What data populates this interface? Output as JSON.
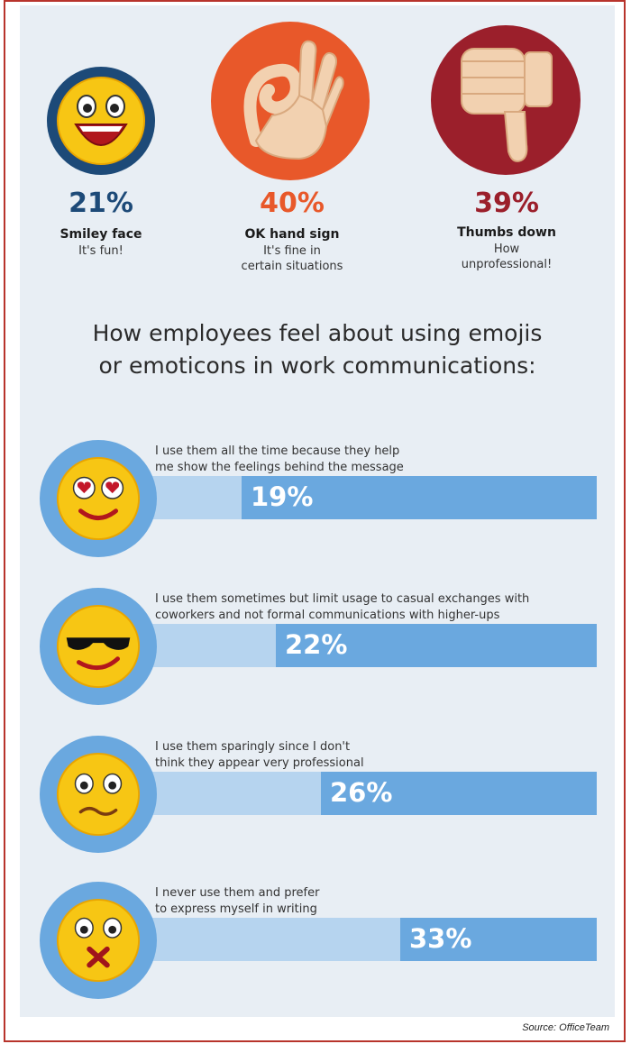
{
  "top_icons": [
    {
      "percent": "21%",
      "title": "Smiley face",
      "subtitle": [
        "It's fun!"
      ],
      "color": "#1d4a78",
      "ring": "#1d4a78",
      "icon": "smiley-face-icon"
    },
    {
      "percent": "40%",
      "title": "OK hand sign",
      "subtitle": [
        "It's fine in",
        "certain situations"
      ],
      "color": "#e8582a",
      "ring": "#e8582a",
      "icon": "ok-hand-icon"
    },
    {
      "percent": "39%",
      "title": "Thumbs down",
      "subtitle": [
        "How",
        "unprofessional!"
      ],
      "color": "#9b1f2b",
      "ring": "#9b1f2b",
      "icon": "thumbs-down-icon"
    }
  ],
  "heading_lines": [
    "How employees feel about using emojis",
    "or emoticons in work communications:"
  ],
  "chart_data": {
    "type": "bar",
    "categories": [
      "I use them all the time because they help me show the feelings behind the message",
      "I use them sometimes but limit usage to casual exchanges with coworkers and not formal communications with higher-ups",
      "I use them sparingly since I don't think they appear very professional",
      "I never use them and prefer to express myself in writing"
    ],
    "category_lines": [
      [
        "I use them all the time because they help",
        "me show the feelings behind the message"
      ],
      [
        "I use them sometimes but limit usage to casual exchanges with",
        "coworkers and not formal communications with higher-ups"
      ],
      [
        "I use them sparingly since I don't",
        "think they appear very professional"
      ],
      [
        "I never use them and prefer",
        "to express myself in writing"
      ]
    ],
    "values": [
      19,
      22,
      26,
      33
    ],
    "value_labels": [
      "19%",
      "22%",
      "26%",
      "33%"
    ],
    "icons": [
      "heart-eyes-face-icon",
      "sunglasses-face-icon",
      "worried-face-icon",
      "muted-face-icon"
    ],
    "colors": {
      "track": "#6aa8df",
      "fill": "#b6d4ef"
    }
  },
  "source": "Source: OfficeTeam"
}
